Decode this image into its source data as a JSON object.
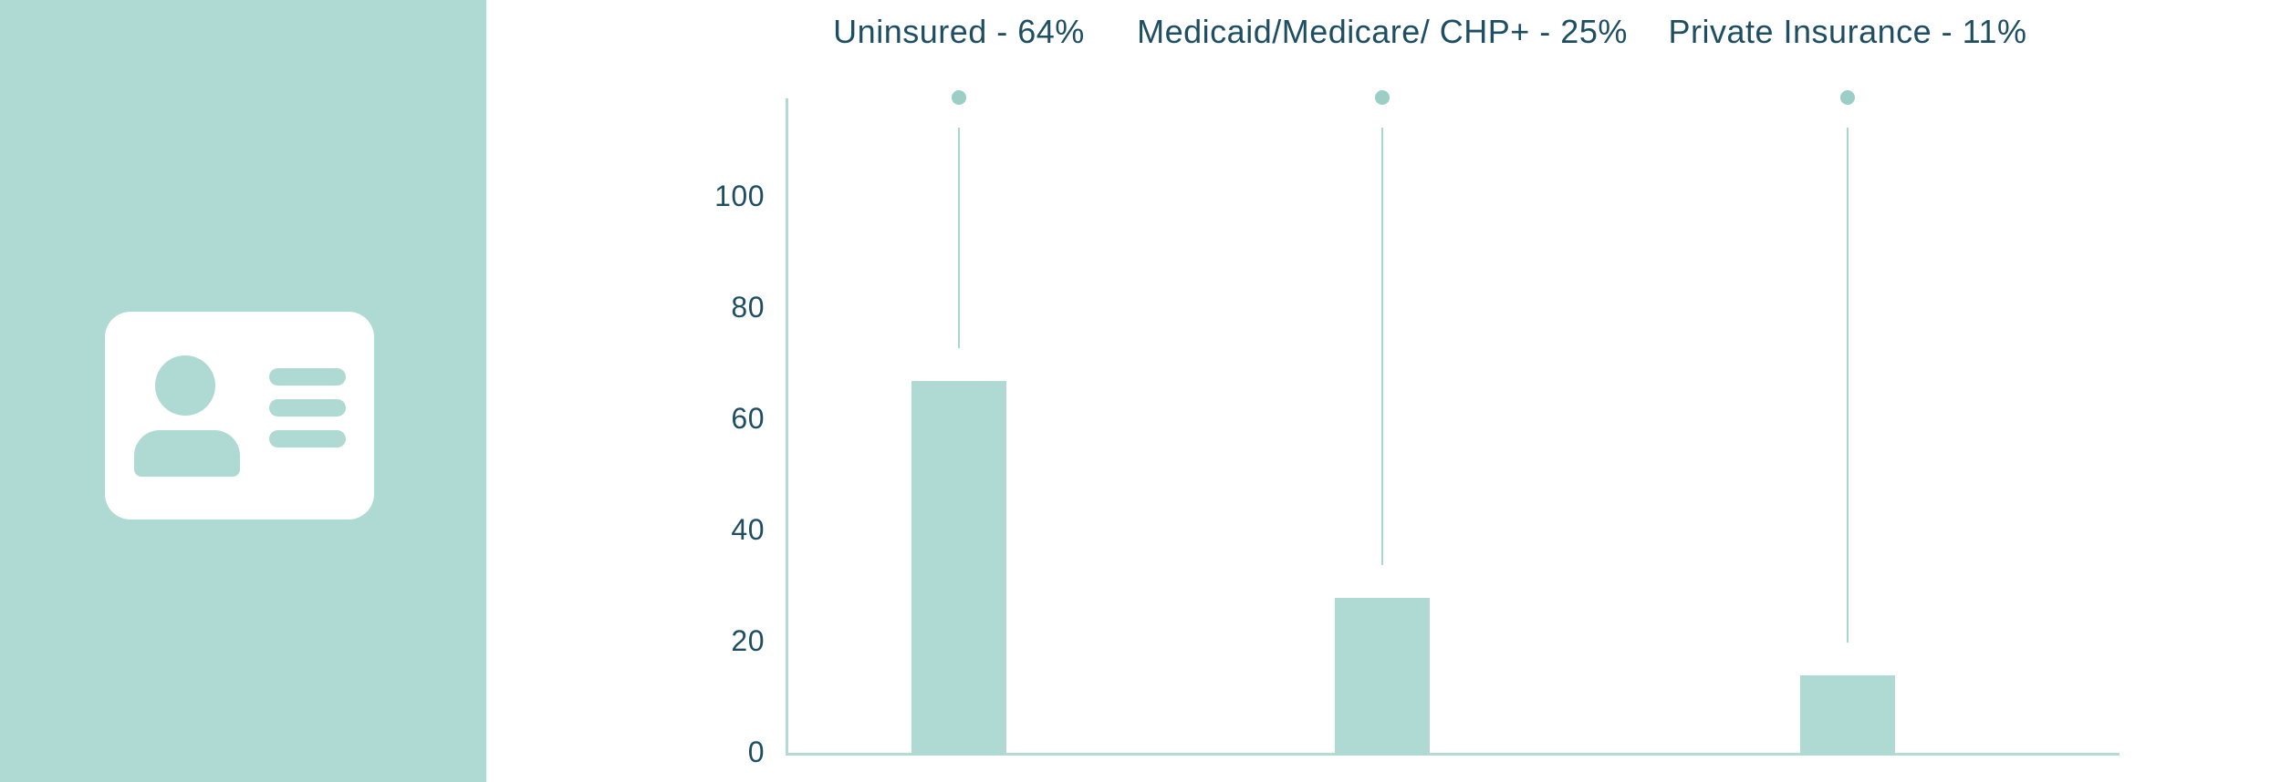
{
  "sidebar": {
    "background_color": "#aedad3",
    "icon": "id-card-icon",
    "icon_color": "#ffffff",
    "icon_glyph_color": "#aedad3"
  },
  "chart_data": {
    "type": "bar",
    "title": "",
    "xlabel": "",
    "ylabel": "",
    "categories": [
      "Uninsured",
      "Medicaid/Medicare/ CHP+",
      "Private Insurance"
    ],
    "values": [
      64,
      25,
      11
    ],
    "column_labels": [
      "Uninsured - 64%",
      "Medicaid/Medicare/ CHP+ - 25%",
      "Private Insurance - 11%"
    ],
    "yticks": [
      0,
      20,
      40,
      60,
      80,
      100
    ],
    "ylim": [
      0,
      100
    ],
    "grid": false,
    "legend_position": "none",
    "bar_color": "#aedad3",
    "dot_color": "#9bcfc5",
    "drop_line_color": "#a9d6ce",
    "axis_color": "#b4dbd3",
    "label_color": "#1e4e63"
  }
}
